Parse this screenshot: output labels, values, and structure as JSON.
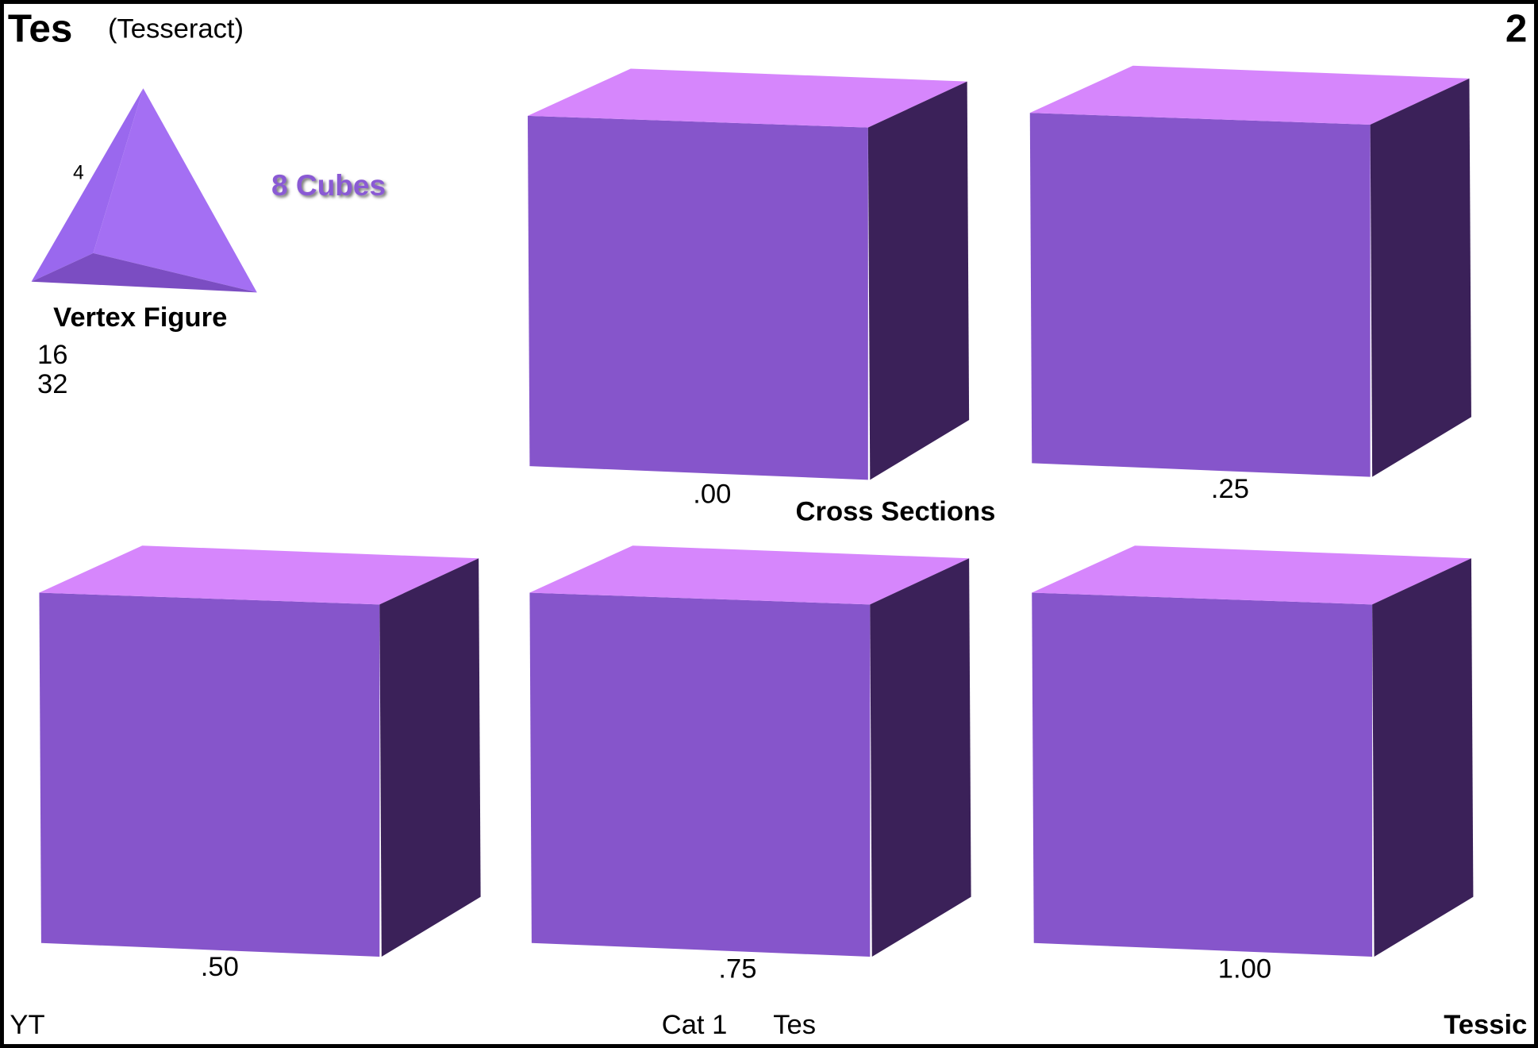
{
  "header": {
    "abbrev": "Tes",
    "name": "(Tesseract)",
    "number": "2"
  },
  "vertex_figure": {
    "edge_label": "4",
    "title": "Vertex Figure",
    "counts": [
      "16",
      "32"
    ]
  },
  "cells": "8 Cubes",
  "cross_sections": {
    "title": "Cross Sections",
    "labels": [
      ".00",
      ".25",
      ".50",
      ".75",
      "1.00"
    ]
  },
  "footer": {
    "left": "YT",
    "category": "Cat 1",
    "abbrev": "Tes",
    "right": "Tessic"
  }
}
